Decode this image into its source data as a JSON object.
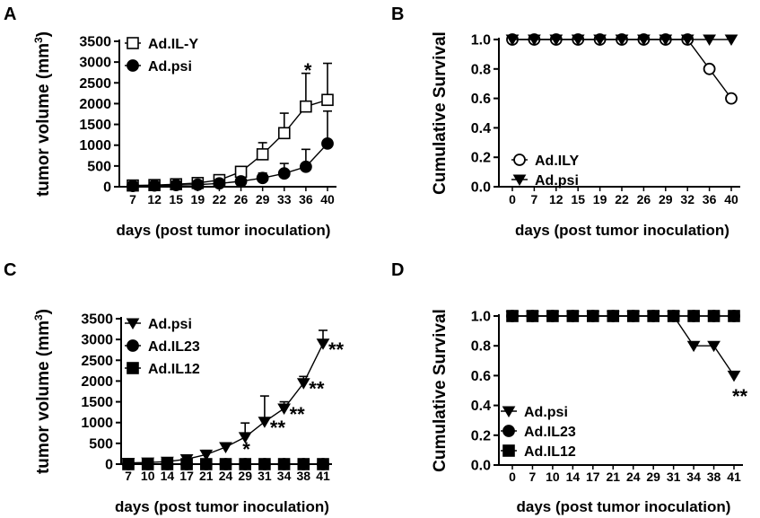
{
  "chart_data": [
    {
      "panel": "A",
      "type": "line",
      "xlabel": "days (post tumor inoculation)",
      "ylabel": "tumor volume (mm",
      "ylabel_sup": "3",
      "ylabel_close": ")",
      "categories": [
        "7",
        "12",
        "15",
        "19",
        "22",
        "26",
        "29",
        "33",
        "36",
        "40"
      ],
      "ylim": [
        0,
        3500
      ],
      "yticks": [
        "0",
        "500",
        "1000",
        "1500",
        "2000",
        "2500",
        "3000",
        "3500"
      ],
      "series": [
        {
          "name": "Ad.IL-Y",
          "marker": "square-open",
          "values": [
            30,
            40,
            60,
            90,
            160,
            360,
            780,
            1290,
            1930,
            2090
          ],
          "errors": [
            0,
            0,
            30,
            40,
            60,
            100,
            280,
            480,
            800,
            880
          ]
        },
        {
          "name": "Ad.psi",
          "marker": "circle",
          "values": [
            20,
            30,
            40,
            50,
            80,
            130,
            210,
            320,
            480,
            1040
          ],
          "errors": [
            0,
            0,
            0,
            0,
            30,
            0,
            120,
            240,
            420,
            780
          ]
        }
      ],
      "annotations": [
        {
          "text": "*",
          "category": "36"
        }
      ]
    },
    {
      "panel": "B",
      "type": "line",
      "xlabel": "days (post tumor inoculation)",
      "ylabel": "Cumulative Survival",
      "categories": [
        "0",
        "7",
        "12",
        "15",
        "19",
        "22",
        "26",
        "29",
        "32",
        "36",
        "40"
      ],
      "ylim": [
        0.0,
        1.0
      ],
      "yticks": [
        "0.0",
        "0.2",
        "0.4",
        "0.6",
        "0.8",
        "1.0"
      ],
      "series": [
        {
          "name": "Ad.ILY",
          "marker": "circle-open",
          "values": [
            1.0,
            1.0,
            1.0,
            1.0,
            1.0,
            1.0,
            1.0,
            1.0,
            1.0,
            0.8,
            0.6
          ]
        },
        {
          "name": "Ad.psi",
          "marker": "triangle-down",
          "values": [
            1.0,
            1.0,
            1.0,
            1.0,
            1.0,
            1.0,
            1.0,
            1.0,
            1.0,
            1.0,
            1.0
          ]
        }
      ]
    },
    {
      "panel": "C",
      "type": "line",
      "xlabel": "days (post tumor inoculation)",
      "ylabel": "tumor volume (mm",
      "ylabel_sup": "3",
      "ylabel_close": ")",
      "categories": [
        "7",
        "10",
        "14",
        "17",
        "21",
        "24",
        "29",
        "31",
        "34",
        "38",
        "41"
      ],
      "ylim": [
        0,
        3500
      ],
      "yticks": [
        "0",
        "500",
        "1000",
        "1500",
        "2000",
        "2500",
        "3000",
        "3500"
      ],
      "series": [
        {
          "name": "Ad.psi",
          "marker": "triangle-down",
          "values": [
            30,
            40,
            60,
            120,
            230,
            410,
            650,
            1020,
            1340,
            1950,
            2900
          ],
          "errors": [
            0,
            0,
            30,
            80,
            100,
            100,
            340,
            620,
            160,
            160,
            320
          ]
        },
        {
          "name": "Ad.IL23",
          "marker": "circle",
          "values": [
            0,
            0,
            0,
            0,
            0,
            0,
            0,
            0,
            0,
            0,
            0
          ]
        },
        {
          "name": "Ad.IL12",
          "marker": "square",
          "values": [
            0,
            0,
            0,
            0,
            0,
            0,
            0,
            0,
            0,
            0,
            0
          ]
        }
      ],
      "annotations": [
        {
          "text": "*",
          "category": "29"
        },
        {
          "text": "**",
          "category": "31"
        },
        {
          "text": "**",
          "category": "34"
        },
        {
          "text": "**",
          "category": "38"
        },
        {
          "text": "**",
          "category": "41"
        }
      ]
    },
    {
      "panel": "D",
      "type": "line",
      "xlabel": "days (post tumor inoculation)",
      "ylabel": "Cumulative Survival",
      "categories": [
        "0",
        "7",
        "10",
        "14",
        "17",
        "21",
        "24",
        "29",
        "31",
        "34",
        "38",
        "41"
      ],
      "ylim": [
        0.0,
        1.0
      ],
      "yticks": [
        "0.0",
        "0.2",
        "0.4",
        "0.6",
        "0.8",
        "1.0"
      ],
      "series": [
        {
          "name": "Ad.psi",
          "marker": "triangle-down",
          "values": [
            1.0,
            1.0,
            1.0,
            1.0,
            1.0,
            1.0,
            1.0,
            1.0,
            1.0,
            0.8,
            0.8,
            0.6
          ]
        },
        {
          "name": "Ad.IL23",
          "marker": "circle",
          "values": [
            1.0,
            1.0,
            1.0,
            1.0,
            1.0,
            1.0,
            1.0,
            1.0,
            1.0,
            1.0,
            1.0,
            1.0
          ]
        },
        {
          "name": "Ad.IL12",
          "marker": "square",
          "values": [
            1.0,
            1.0,
            1.0,
            1.0,
            1.0,
            1.0,
            1.0,
            1.0,
            1.0,
            1.0,
            1.0,
            1.0
          ]
        }
      ],
      "annotations": [
        {
          "text": "**",
          "category": "41"
        }
      ]
    }
  ]
}
